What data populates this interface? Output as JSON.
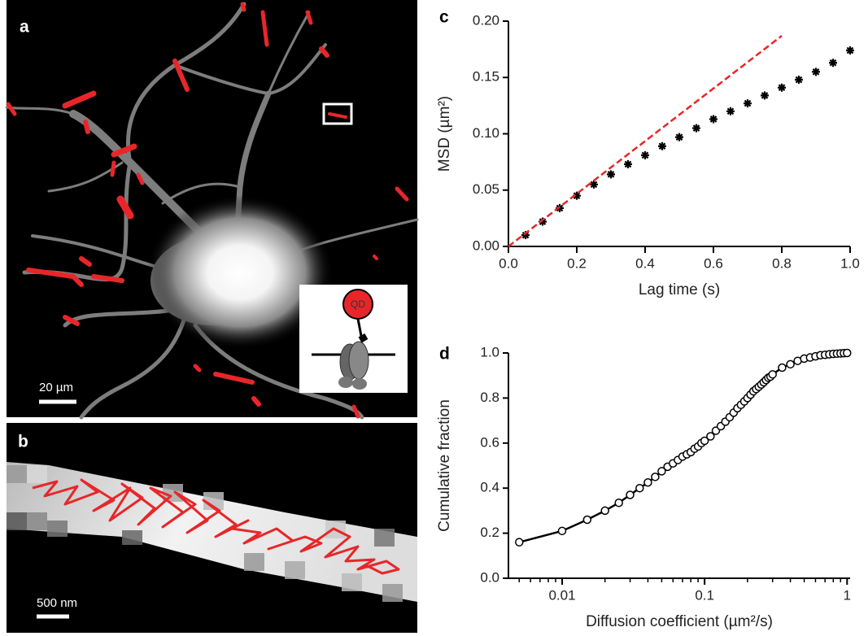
{
  "panels": {
    "a": {
      "label": "a",
      "scale_bar": "20 µm",
      "inset_label": "QD"
    },
    "b": {
      "label": "b",
      "scale_bar": "500 nm"
    },
    "c": {
      "label": "c"
    },
    "d": {
      "label": "d"
    }
  },
  "chart_data": [
    {
      "type": "scatter",
      "xlabel": "Lag time (s)",
      "ylabel": "MSD (µm²)",
      "xlim": [
        0,
        1.0
      ],
      "ylim": [
        0,
        0.2
      ],
      "xticks": [
        {
          "value": 0,
          "label": "0.0"
        },
        0.2,
        0.4,
        0.6,
        0.8,
        {
          "value": 1,
          "label": "1.0"
        }
      ],
      "yticks": [
        {
          "value": 0,
          "label": "0.00"
        },
        0.05,
        {
          "value": 0.1,
          "label": "0.10"
        },
        0.15,
        {
          "value": 0.2,
          "label": "0.20"
        }
      ],
      "series": [
        {
          "type": "scatter",
          "marker": "asterisk",
          "color": "#000000",
          "x": [
            0.05,
            0.1,
            0.15,
            0.2,
            0.25,
            0.3,
            0.35,
            0.4,
            0.45,
            0.5,
            0.55,
            0.6,
            0.65,
            0.7,
            0.75,
            0.8,
            0.85,
            0.9,
            0.95,
            1.0
          ],
          "values": [
            0.01,
            0.022,
            0.034,
            0.045,
            0.055,
            0.064,
            0.073,
            0.081,
            0.089,
            0.097,
            0.105,
            0.113,
            0.12,
            0.127,
            0.134,
            0.141,
            0.148,
            0.155,
            0.163,
            0.174
          ]
        },
        {
          "type": "line",
          "style": "dashed",
          "color": "#e8262a",
          "x": [
            0,
            0.8
          ],
          "values": [
            0,
            0.187
          ]
        }
      ]
    },
    {
      "type": "line",
      "xlabel": "Diffusion coefficient (µm²/s)",
      "ylabel": "Cumulative fraction",
      "xscale": "log",
      "xlim": [
        0.0042,
        1.05
      ],
      "ylim": [
        0,
        1.0
      ],
      "xticks": [
        0.01,
        0.1,
        1
      ],
      "xminorticks": [
        0.005,
        0.006,
        0.007,
        0.008,
        0.009,
        0.02,
        0.03,
        0.04,
        0.05,
        0.06,
        0.07,
        0.08,
        0.09,
        0.2,
        0.3,
        0.4,
        0.5,
        0.6,
        0.7,
        0.8,
        0.9
      ],
      "yticks": [
        {
          "value": 0,
          "label": "0.0"
        },
        0.2,
        0.4,
        0.6,
        0.8,
        {
          "value": 1,
          "label": "1.0"
        }
      ],
      "series": [
        {
          "type": "line",
          "marker": "circle",
          "color": "#000000",
          "x": [
            0.005,
            0.01,
            0.015,
            0.02,
            0.025,
            0.03,
            0.035,
            0.04,
            0.045,
            0.05,
            0.055,
            0.06,
            0.065,
            0.07,
            0.075,
            0.08,
            0.085,
            0.09,
            0.095,
            0.1,
            0.11,
            0.12,
            0.13,
            0.14,
            0.15,
            0.16,
            0.17,
            0.18,
            0.19,
            0.2,
            0.21,
            0.22,
            0.23,
            0.24,
            0.25,
            0.26,
            0.27,
            0.28,
            0.29,
            0.3,
            0.35,
            0.4,
            0.45,
            0.5,
            0.55,
            0.6,
            0.65,
            0.7,
            0.75,
            0.8,
            0.85,
            0.9,
            0.95,
            1.0
          ],
          "values": [
            0.16,
            0.21,
            0.26,
            0.3,
            0.335,
            0.37,
            0.4,
            0.425,
            0.45,
            0.475,
            0.495,
            0.51,
            0.525,
            0.54,
            0.55,
            0.56,
            0.575,
            0.585,
            0.6,
            0.61,
            0.63,
            0.655,
            0.675,
            0.695,
            0.715,
            0.735,
            0.755,
            0.77,
            0.785,
            0.8,
            0.815,
            0.83,
            0.84,
            0.85,
            0.86,
            0.87,
            0.88,
            0.89,
            0.895,
            0.905,
            0.935,
            0.95,
            0.965,
            0.975,
            0.98,
            0.985,
            0.99,
            0.992,
            0.994,
            0.996,
            0.997,
            0.998,
            0.999,
            1.0
          ]
        }
      ]
    }
  ]
}
